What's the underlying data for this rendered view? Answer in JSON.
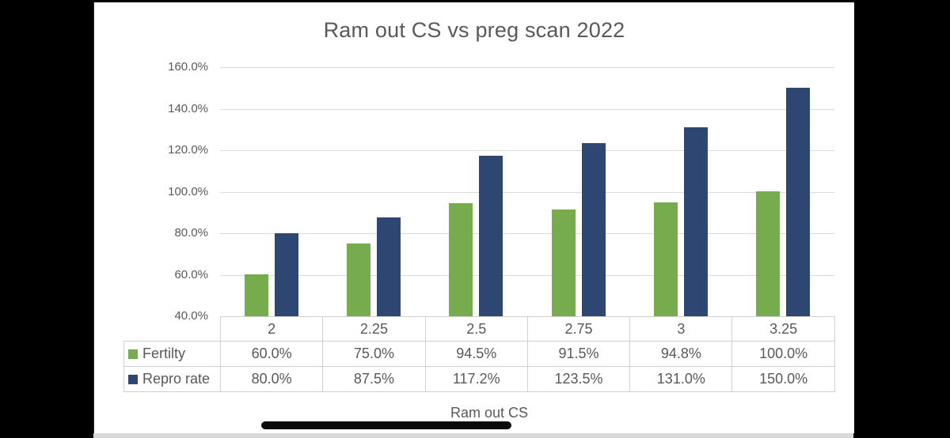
{
  "window": {
    "background_color": "#000000",
    "panel_background_color": "#FFFFFF",
    "bottom_strip_color": "#D9D9D9",
    "home_indicator_color": "#0A0A0A"
  },
  "chart_data": {
    "type": "bar",
    "title": "Ram out CS vs preg scan 2022",
    "xlabel": "Ram out CS",
    "ylabel": "",
    "categories": [
      "2",
      "2.25",
      "2.5",
      "2.75",
      "3",
      "3.25"
    ],
    "series": [
      {
        "name": "Fertilty",
        "color": "#76AC4E",
        "values": [
          60.0,
          75.0,
          94.5,
          91.5,
          94.8,
          100.0
        ]
      },
      {
        "name": "Repro rate",
        "color": "#2E4672",
        "values": [
          80.0,
          87.5,
          117.2,
          123.5,
          131.0,
          150.0
        ]
      }
    ],
    "ylim": [
      40,
      160
    ],
    "ytick_step": 20,
    "ytick_labels": [
      "160.0%",
      "140.0%",
      "120.0%",
      "100.0%",
      "80.0%",
      "60.0%",
      "40.0%"
    ],
    "grid": true,
    "legend_position": "data-table-left",
    "data_table": {
      "column_headers": [
        "2",
        "2.25",
        "2.5",
        "2.75",
        "3",
        "3.25"
      ],
      "rows": [
        {
          "label": "Fertilty",
          "values": [
            "60.0%",
            "75.0%",
            "94.5%",
            "91.5%",
            "94.8%",
            "100.0%"
          ]
        },
        {
          "label": "Repro rate",
          "values": [
            "80.0%",
            "87.5%",
            "117.2%",
            "123.5%",
            "131.0%",
            "150.0%"
          ]
        }
      ]
    },
    "title_color": "#595959",
    "tick_label_color": "#595959",
    "gridline_color": "#D9D9D9",
    "table_border_color": "#D0D0D0"
  }
}
